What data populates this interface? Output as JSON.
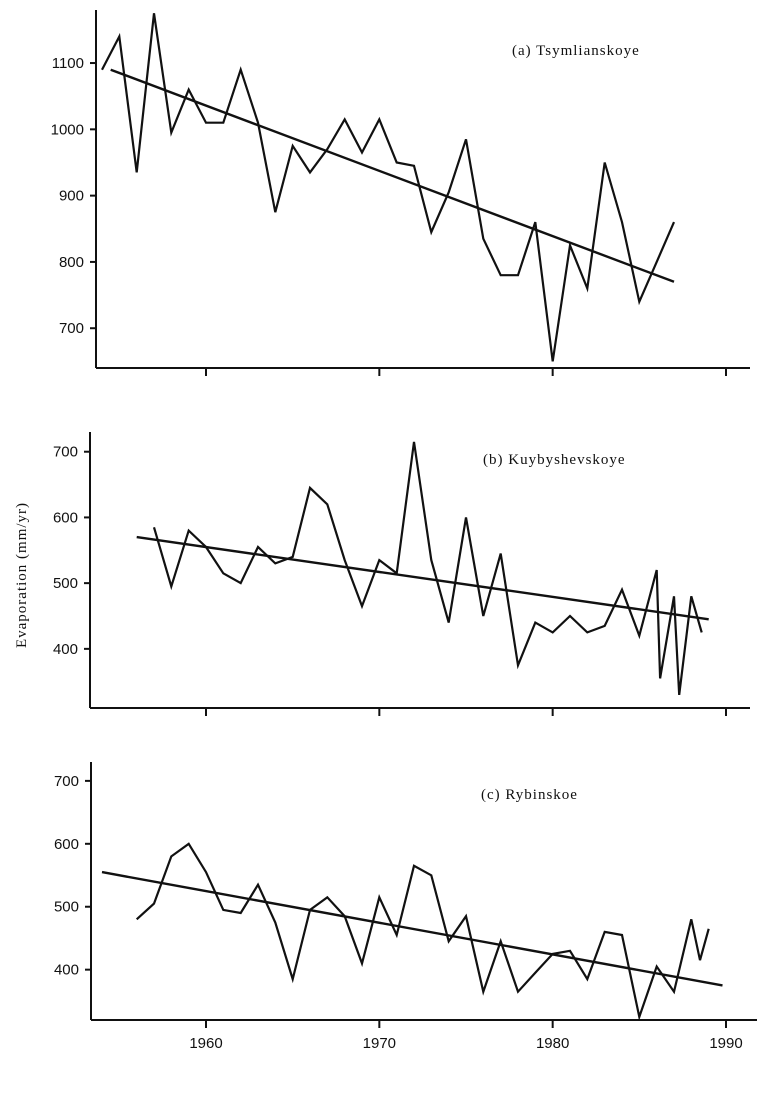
{
  "ylabel": "Evaporation (mm/yr)",
  "chart_data": [
    {
      "type": "line",
      "title": "(a) Tsymlianskoye",
      "xlabel": "",
      "ylabel": "Evaporation (mm/yr)",
      "xlim": [
        1953.5,
        1992
      ],
      "ylim": [
        640,
        1180
      ],
      "yticks": [
        700,
        800,
        900,
        1000,
        1100
      ],
      "xticks": [
        1960,
        1970,
        1980,
        1990
      ],
      "xtick_labels_visible": false,
      "series": [
        {
          "kind": "observed",
          "x": [
            1954,
            1955,
            1956,
            1957,
            1958,
            1959,
            1960,
            1961,
            1962,
            1963,
            1964,
            1965,
            1966,
            1967,
            1968,
            1969,
            1970,
            1971,
            1972,
            1973,
            1974,
            1975,
            1976,
            1977,
            1978,
            1979,
            1980,
            1981,
            1982,
            1983,
            1984,
            1985,
            1986,
            1987
          ],
          "y": [
            1090,
            1140,
            935,
            1175,
            995,
            1060,
            1010,
            1010,
            1090,
            1010,
            875,
            975,
            935,
            970,
            1015,
            965,
            1015,
            950,
            945,
            845,
            905,
            985,
            835,
            780,
            780,
            860,
            650,
            825,
            760,
            950,
            860,
            740,
            800,
            860
          ]
        },
        {
          "kind": "trend",
          "x": [
            1954.5,
            1987
          ],
          "y": [
            1090,
            770
          ]
        }
      ]
    },
    {
      "type": "line",
      "title": "(b) Kuybyshevskoye",
      "xlabel": "",
      "ylabel": "Evaporation (mm/yr)",
      "xlim": [
        1953.5,
        1992
      ],
      "ylim": [
        310,
        730
      ],
      "yticks": [
        400,
        500,
        600,
        700
      ],
      "xticks": [
        1960,
        1970,
        1980,
        1990
      ],
      "xtick_labels_visible": false,
      "series": [
        {
          "kind": "observed",
          "x": [
            1957,
            1958,
            1959,
            1960,
            1961,
            1962,
            1963,
            1964,
            1965,
            1966,
            1967,
            1968,
            1969,
            1970,
            1971,
            1972,
            1973,
            1974,
            1975,
            1976,
            1977,
            1978,
            1979,
            1980,
            1981,
            1982,
            1983,
            1984,
            1985,
            1986,
            1986.2,
            1987,
            1987.3,
            1988,
            1988.6
          ],
          "y": [
            585,
            495,
            580,
            555,
            515,
            500,
            555,
            530,
            540,
            645,
            620,
            535,
            465,
            535,
            515,
            715,
            535,
            440,
            600,
            450,
            545,
            375,
            440,
            425,
            450,
            425,
            435,
            490,
            420,
            520,
            355,
            480,
            330,
            480,
            425
          ]
        },
        {
          "kind": "trend",
          "x": [
            1956,
            1989
          ],
          "y": [
            570,
            445
          ]
        }
      ]
    },
    {
      "type": "line",
      "title": "(c) Rybinskoe",
      "xlabel": "",
      "ylabel": "",
      "xlim": [
        1953.5,
        1992
      ],
      "ylim": [
        320,
        730
      ],
      "yticks": [
        400,
        500,
        600,
        700
      ],
      "xticks": [
        1960,
        1970,
        1980,
        1990
      ],
      "xtick_labels_visible": true,
      "series": [
        {
          "kind": "observed",
          "x": [
            1956,
            1957,
            1958,
            1959,
            1960,
            1961,
            1962,
            1963,
            1964,
            1965,
            1966,
            1967,
            1968,
            1969,
            1970,
            1971,
            1972,
            1973,
            1974,
            1975,
            1976,
            1977,
            1978,
            1979,
            1980,
            1981,
            1982,
            1983,
            1984,
            1985,
            1986,
            1987,
            1988,
            1988.5,
            1989
          ],
          "y": [
            480,
            505,
            580,
            600,
            555,
            495,
            490,
            535,
            475,
            385,
            495,
            515,
            485,
            410,
            515,
            455,
            565,
            550,
            445,
            485,
            365,
            445,
            365,
            395,
            425,
            430,
            385,
            460,
            455,
            325,
            405,
            365,
            480,
            415,
            465
          ]
        },
        {
          "kind": "trend",
          "x": [
            1954,
            1989.8
          ],
          "y": [
            555,
            375
          ]
        }
      ]
    }
  ]
}
